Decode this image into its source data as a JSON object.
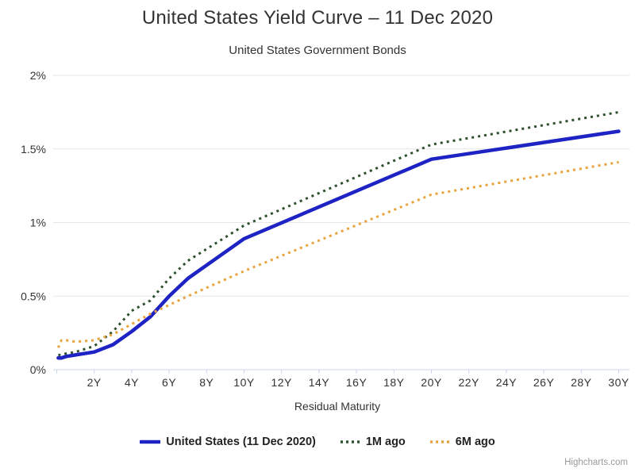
{
  "chart_data": {
    "type": "line",
    "title": "United States Yield Curve – 11 Dec 2020",
    "subtitle": "United States Government Bonds",
    "xlabel": "Residual Maturity",
    "ylabel": "",
    "credit": "Highcharts.com",
    "grid": "horizontal",
    "legend_position": "bottom",
    "xlim": [
      0,
      30.6
    ],
    "ylim": [
      0,
      2
    ],
    "x_unit": "years",
    "x_tick_years": [
      2,
      4,
      6,
      8,
      10,
      12,
      14,
      16,
      18,
      20,
      22,
      24,
      26,
      28,
      30
    ],
    "x_tick_labels": [
      "2Y",
      "4Y",
      "6Y",
      "8Y",
      "10Y",
      "12Y",
      "14Y",
      "16Y",
      "18Y",
      "20Y",
      "22Y",
      "24Y",
      "26Y",
      "28Y",
      "30Y"
    ],
    "y_tick_values": [
      0,
      0.5,
      1,
      1.5,
      2
    ],
    "y_tick_labels": [
      "0%",
      "0.5%",
      "1%",
      "1.5%",
      "2%"
    ],
    "maturities_years": [
      0.08,
      0.25,
      0.5,
      1,
      2,
      3,
      4,
      5,
      6,
      7,
      10,
      20,
      30
    ],
    "series": [
      {
        "name": "United States (11 Dec 2020)",
        "color": "#1e23c3",
        "style": "solid",
        "values": [
          0.08,
          0.08,
          0.09,
          0.1,
          0.12,
          0.17,
          0.26,
          0.36,
          0.5,
          0.62,
          0.89,
          1.43,
          1.62
        ]
      },
      {
        "name": "1M ago",
        "color": "#2d502d",
        "style": "dotted",
        "values": [
          0.1,
          0.1,
          0.11,
          0.12,
          0.16,
          0.26,
          0.4,
          0.47,
          0.62,
          0.74,
          0.98,
          1.53,
          1.75
        ]
      },
      {
        "name": "6M ago",
        "color": "#e8a33d",
        "style": "dotted",
        "values": [
          0.15,
          0.2,
          0.2,
          0.19,
          0.2,
          0.24,
          0.31,
          0.38,
          0.44,
          0.5,
          0.67,
          1.19,
          1.41
        ]
      }
    ],
    "colors": {
      "grid": "#e6e6e6",
      "axis": "#ccd6eb",
      "tick_label": "#333333",
      "axis_title": "#333333",
      "title": "#333333",
      "subtitle": "#333333",
      "legend_text": "#222222",
      "credit": "#999999",
      "background": "#ffffff"
    }
  }
}
